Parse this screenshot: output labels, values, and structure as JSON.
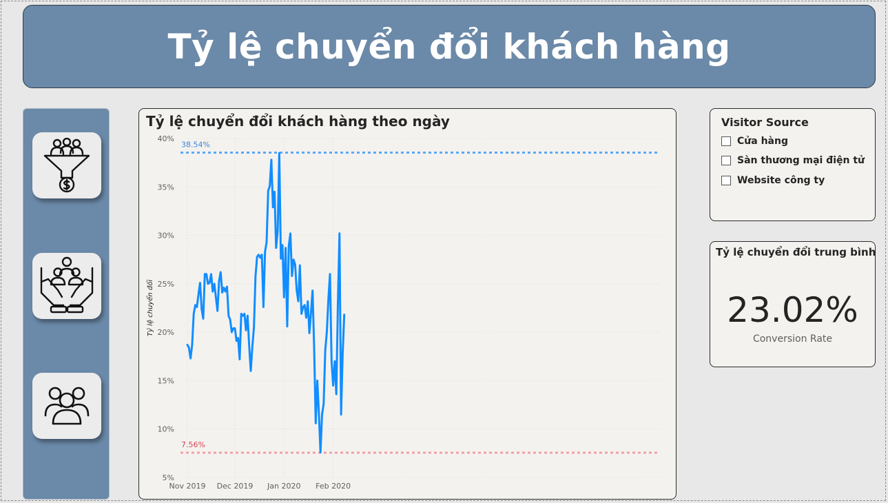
{
  "header": {
    "title": "Tỷ lệ chuyển đổi khách hàng"
  },
  "sidebar": {
    "icons": [
      {
        "name": "conversion-funnel-icon"
      },
      {
        "name": "customer-care-hands-icon"
      },
      {
        "name": "users-group-icon"
      }
    ]
  },
  "filter": {
    "title": "Visitor Source",
    "options": [
      "Cửa hàng",
      "Sàn thương mại điện tử",
      "Website công ty"
    ]
  },
  "kpi": {
    "title": "Tỷ lệ chuyển đổi trung bình",
    "value": "23.02%",
    "label": "Conversion Rate"
  },
  "colors": {
    "accent": "#6b89a8",
    "line": "#118dff",
    "max_line": "#5aa9f5",
    "min_line": "#f0a0a8",
    "min_label": "#d64550"
  },
  "chart_data": {
    "type": "line",
    "title": "Tỷ lệ chuyển đổi khách hàng theo ngày",
    "xlabel": "",
    "ylabel": "Tỷ lệ chuyển đổi",
    "x_start": "2019-11-01",
    "ylim": [
      5,
      40
    ],
    "y_ticks": [
      "5%",
      "10%",
      "15%",
      "20%",
      "25%",
      "30%",
      "35%",
      "40%"
    ],
    "x_ticks": [
      {
        "label": "Nov 2019",
        "date": "2019-11-01"
      },
      {
        "label": "Dec 2019",
        "date": "2019-12-01"
      },
      {
        "label": "Jan 2020",
        "date": "2020-01-01"
      },
      {
        "label": "Feb 2020",
        "date": "2020-02-01"
      }
    ],
    "max_line": {
      "value": 38.54,
      "label": "38.54%"
    },
    "min_line": {
      "value": 7.56,
      "label": "7.56%"
    },
    "grid": true,
    "values": [
      18.7,
      18.4,
      17.3,
      18.7,
      21.9,
      22.8,
      22.6,
      23.9,
      25.1,
      22.4,
      21.4,
      26.0,
      26.0,
      25.0,
      25.1,
      26.0,
      24.2,
      25.0,
      23.6,
      22.2,
      25.3,
      26.2,
      24.1,
      24.6,
      24.2,
      24.7,
      21.7,
      21.3,
      20.0,
      20.4,
      20.4,
      19.1,
      19.4,
      17.2,
      21.9,
      21.7,
      21.9,
      20.2,
      21.7,
      18.6,
      16.0,
      18.5,
      20.5,
      25.8,
      27.8,
      28.0,
      27.7,
      28.0,
      22.6,
      28.3,
      29.3,
      34.6,
      35.1,
      37.8,
      32.9,
      34.5,
      28.7,
      30.5,
      38.5,
      27.6,
      29.0,
      23.6,
      28.7,
      20.6,
      28.9,
      30.2,
      25.8,
      27.5,
      27.0,
      24.3,
      23.2,
      26.9,
      21.9,
      22.6,
      22.8,
      21.5,
      23.2,
      19.9,
      22.0,
      24.3,
      18.4,
      10.6,
      15.0,
      11.6,
      7.6,
      11.5,
      12.6,
      18.1,
      20.0,
      23.4,
      26.0,
      17.0,
      14.5,
      17.0,
      13.6,
      23.0,
      30.2,
      11.5,
      17.8,
      21.8
    ]
  }
}
